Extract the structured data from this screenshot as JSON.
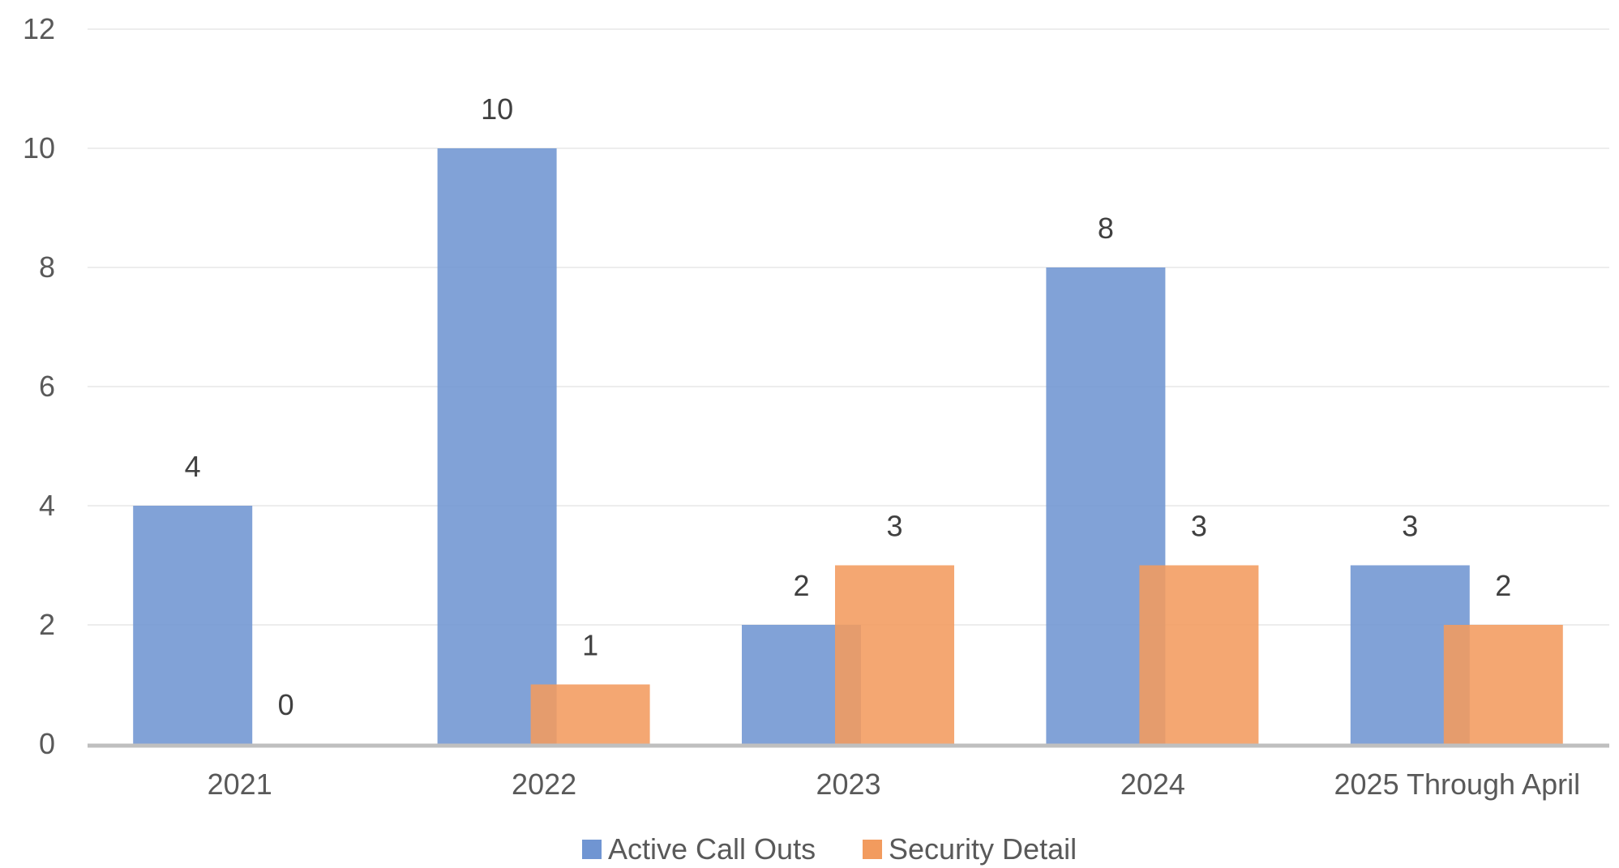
{
  "chart_data": {
    "type": "bar",
    "title": "",
    "xlabel": "",
    "ylabel": "",
    "categories": [
      "2021",
      "2022",
      "2023",
      "2024",
      "2025 Through April"
    ],
    "series": [
      {
        "name": "Active Call Outs",
        "values": [
          4,
          10,
          2,
          8,
          3
        ],
        "color": "#7095D2"
      },
      {
        "name": "Security Detail",
        "values": [
          0,
          1,
          3,
          3,
          2
        ],
        "color": "#F29B5E"
      }
    ],
    "ylim": [
      0,
      12
    ],
    "yticks": [
      0,
      2,
      4,
      6,
      8,
      10,
      12
    ],
    "grid": true,
    "legend_position": "bottom",
    "data_labels": true,
    "axis_color": "#BFBFBF",
    "grid_color": "#EDEDED"
  }
}
